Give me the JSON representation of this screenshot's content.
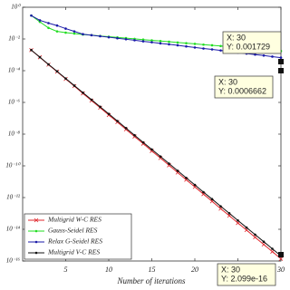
{
  "chart_data": {
    "type": "line",
    "log_y": true,
    "xlabel": "Number of iterations",
    "x": [
      1,
      2,
      3,
      4,
      5,
      6,
      7,
      8,
      9,
      10,
      11,
      12,
      13,
      14,
      15,
      16,
      17,
      18,
      19,
      20,
      21,
      22,
      23,
      24,
      25,
      26,
      27,
      28,
      29,
      30
    ],
    "xlim": [
      0,
      30
    ],
    "xticks": [
      5,
      10,
      15,
      20,
      25,
      30
    ],
    "ylim": [
      1e-16,
      1
    ],
    "yticks": [
      {
        "value": 1,
        "label": "10⁰"
      },
      {
        "value": 0.01,
        "label": "10⁻²"
      },
      {
        "value": 0.0001,
        "label": "10⁻⁴"
      },
      {
        "value": 1e-06,
        "label": "10⁻⁶"
      },
      {
        "value": 1e-08,
        "label": "10⁻⁸"
      },
      {
        "value": 1e-10,
        "label": "10⁻¹⁰"
      },
      {
        "value": 1e-12,
        "label": "10⁻¹²"
      },
      {
        "value": 1e-14,
        "label": "10⁻¹⁴"
      },
      {
        "value": 1e-16,
        "label": "10⁻¹⁶"
      }
    ],
    "legend": "lower left",
    "series": [
      {
        "name": "Multigrid W-C RES",
        "color": "#e0262b",
        "marker": "x",
        "values": [
          0.002,
          0.0007,
          0.00024,
          8.7e-05,
          3e-05,
          1.07e-05,
          3.7e-06,
          1.3e-06,
          4.6e-07,
          1.6e-07,
          5.7e-08,
          2e-08,
          7e-09,
          2.5e-09,
          8.7e-10,
          3.1e-10,
          1.08e-10,
          3.8e-11,
          1.33e-11,
          4.7e-12,
          1.65e-12,
          5.8e-13,
          2e-13,
          7.2e-14,
          2.5e-14,
          8.9e-15,
          3.1e-15,
          1.1e-15,
          3.9e-16,
          1.37e-16
        ]
      },
      {
        "name": "Gauss-Seidel RES",
        "color": "#22dd22",
        "marker": "o",
        "values": [
          0.3,
          0.12,
          0.05,
          0.03,
          0.025,
          0.022,
          0.019,
          0.0175,
          0.0154,
          0.0139,
          0.0125,
          0.0113,
          0.0101,
          0.0091,
          0.0082,
          0.0074,
          0.0067,
          0.006,
          0.0054,
          0.0049,
          0.0044,
          0.004,
          0.0036,
          0.0032,
          0.0029,
          0.0026,
          0.0023,
          0.0021,
          0.0019,
          0.001729
        ]
      },
      {
        "name": "Relax G-Seidel RES",
        "color": "#1a1aa8",
        "marker": "o",
        "values": [
          0.3,
          0.15,
          0.1,
          0.07,
          0.045,
          0.03,
          0.02,
          0.0173,
          0.0149,
          0.0129,
          0.0111,
          0.0096,
          0.0083,
          0.0071,
          0.0062,
          0.0053,
          0.0046,
          0.004,
          0.0034,
          0.0029,
          0.0025,
          0.0022,
          0.0019,
          0.0016,
          0.0014,
          0.0012,
          0.00104,
          0.0009,
          0.00077,
          0.0006662
        ]
      },
      {
        "name": "Multigrid V-C RES",
        "color": "#111111",
        "marker": "o",
        "values": [
          0.002,
          0.00071,
          0.00025,
          9.1e-05,
          3.2e-05,
          1.15e-05,
          4.1e-06,
          1.48e-06,
          5.3e-07,
          1.9e-07,
          6.7e-08,
          2.4e-08,
          8.5e-09,
          3e-09,
          1.08e-09,
          3.9e-10,
          1.38e-10,
          4.9e-11,
          1.75e-11,
          6.3e-12,
          2.2e-12,
          8e-13,
          2.8e-13,
          1.02e-13,
          3.6e-14,
          1.29e-14,
          4.6e-15,
          1.65e-15,
          5.9e-16,
          2.099e-16
        ]
      }
    ],
    "annotations": [
      {
        "lines": [
          "X: 30",
          "Y: 0.001729"
        ]
      },
      {
        "lines": [
          "X: 30",
          "Y: 0.0006662"
        ]
      },
      {
        "lines": [
          "X: 30",
          "Y: 2.099e-16"
        ]
      }
    ]
  }
}
